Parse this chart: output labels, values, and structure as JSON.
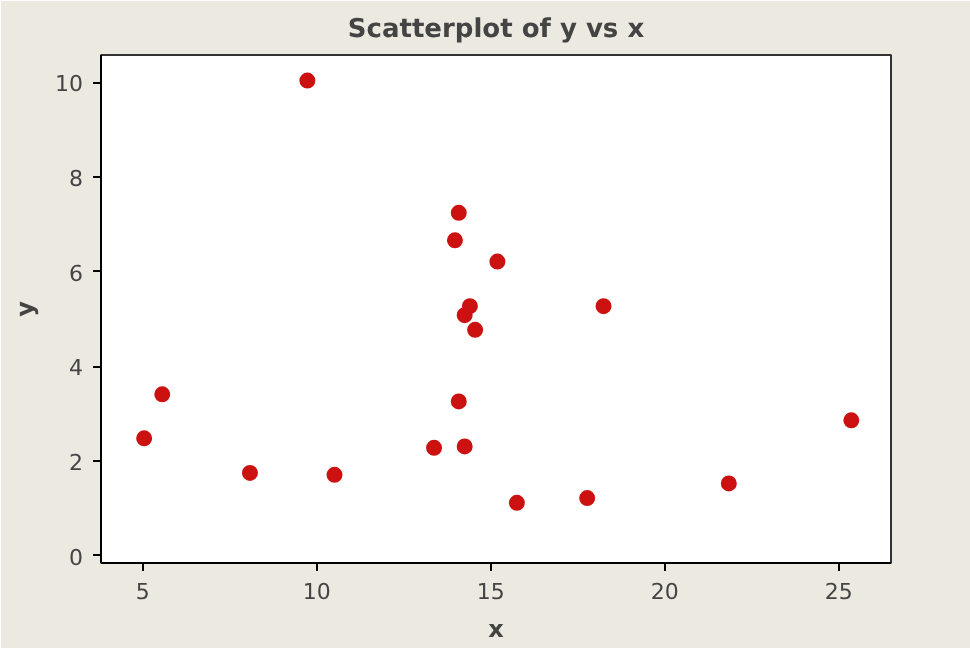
{
  "chart_data": {
    "type": "scatter",
    "title": "Scatterplot of y vs x",
    "xlabel": "x",
    "ylabel": "y",
    "x": [
      5.04,
      5.56,
      8.08,
      9.73,
      10.51,
      13.37,
      13.97,
      14.08,
      14.08,
      14.25,
      14.25,
      14.4,
      14.55,
      15.19,
      15.75,
      17.77,
      18.24,
      21.84,
      25.36
    ],
    "series": [
      {
        "color": "#cc1111",
        "values": [
          2.48,
          3.41,
          1.75,
          10.03,
          1.71,
          2.28,
          6.66,
          7.24,
          3.26,
          2.31,
          5.08,
          5.27,
          4.77,
          6.21,
          1.12,
          1.22,
          5.27,
          1.53,
          2.86
        ]
      }
    ],
    "xlim": [
      3.8,
      26.5
    ],
    "ylim": [
      -0.15,
      10.57
    ],
    "xticks": [
      5,
      10,
      15,
      20,
      25
    ],
    "yticks": [
      0,
      2,
      4,
      6,
      8,
      10
    ],
    "marker": "circle",
    "grid": false
  }
}
